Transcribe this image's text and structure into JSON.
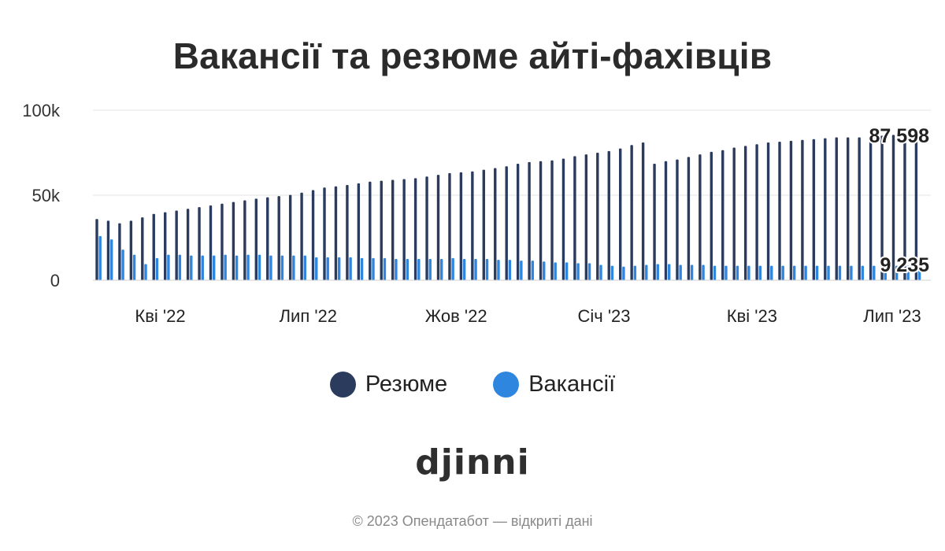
{
  "chart_data": {
    "type": "bar",
    "title": "Вакансії та резюме айті-фахівців",
    "ylim": [
      0,
      100000
    ],
    "y_ticks": [
      {
        "value": 0,
        "label": "0"
      },
      {
        "value": 50000,
        "label": "50k"
      },
      {
        "value": 100000,
        "label": "100k"
      }
    ],
    "x_ticks": [
      {
        "index": 5.5,
        "label": "Кві '22"
      },
      {
        "index": 18.5,
        "label": "Лип '22"
      },
      {
        "index": 31.5,
        "label": "Жов '22"
      },
      {
        "index": 44.5,
        "label": "Січ '23"
      },
      {
        "index": 57.5,
        "label": "Кві '23"
      },
      {
        "index": 70.5,
        "label": "Лип '23"
      }
    ],
    "grid": true,
    "legend_position": "bottom",
    "series": [
      {
        "name": "Резюме",
        "color": "#2b3b5e",
        "values": [
          36000,
          35000,
          33500,
          35000,
          37000,
          39000,
          40000,
          41000,
          42000,
          43000,
          44000,
          45000,
          46000,
          47000,
          48000,
          48800,
          49500,
          50200,
          51500,
          53000,
          54500,
          55200,
          56000,
          57000,
          58000,
          58500,
          59000,
          59500,
          60000,
          61000,
          62000,
          63000,
          63500,
          64000,
          65000,
          66000,
          67000,
          68500,
          69500,
          70000,
          70500,
          71500,
          73000,
          74000,
          75000,
          76000,
          77500,
          79500,
          81000,
          68500,
          70000,
          71000,
          72500,
          74000,
          75500,
          76500,
          78000,
          79000,
          80000,
          81000,
          81500,
          82000,
          82500,
          83000,
          83500,
          84000,
          84000,
          84000,
          84500,
          85000,
          85500,
          86000,
          87598
        ],
        "end_label": "87 598"
      },
      {
        "name": "Вакансії",
        "color": "#2e86de",
        "values": [
          26000,
          24000,
          18000,
          15000,
          9500,
          13000,
          15000,
          15000,
          14500,
          14500,
          14500,
          15000,
          14500,
          15000,
          15000,
          14500,
          14500,
          14500,
          14500,
          13500,
          13500,
          13500,
          13500,
          13000,
          13000,
          13000,
          12500,
          12500,
          12500,
          12500,
          12500,
          13000,
          12500,
          12500,
          12500,
          12000,
          12000,
          11500,
          11500,
          11000,
          10500,
          10500,
          10000,
          10000,
          9000,
          8500,
          8000,
          8500,
          9000,
          9500,
          9500,
          9000,
          9000,
          9000,
          8500,
          8500,
          8500,
          8500,
          8500,
          8500,
          8500,
          8500,
          8500,
          8500,
          8500,
          8500,
          8500,
          8500,
          8500,
          8500,
          8500,
          8500,
          9235
        ],
        "end_label": "9 235"
      }
    ]
  },
  "legend": [
    {
      "label": "Резюме",
      "color": "#2b3b5e"
    },
    {
      "label": "Вакансії",
      "color": "#2e86de"
    }
  ],
  "brand": {
    "logo_text": "djinni"
  },
  "footer": {
    "text": "© 2023 Опендатабот — відкриті дані"
  }
}
